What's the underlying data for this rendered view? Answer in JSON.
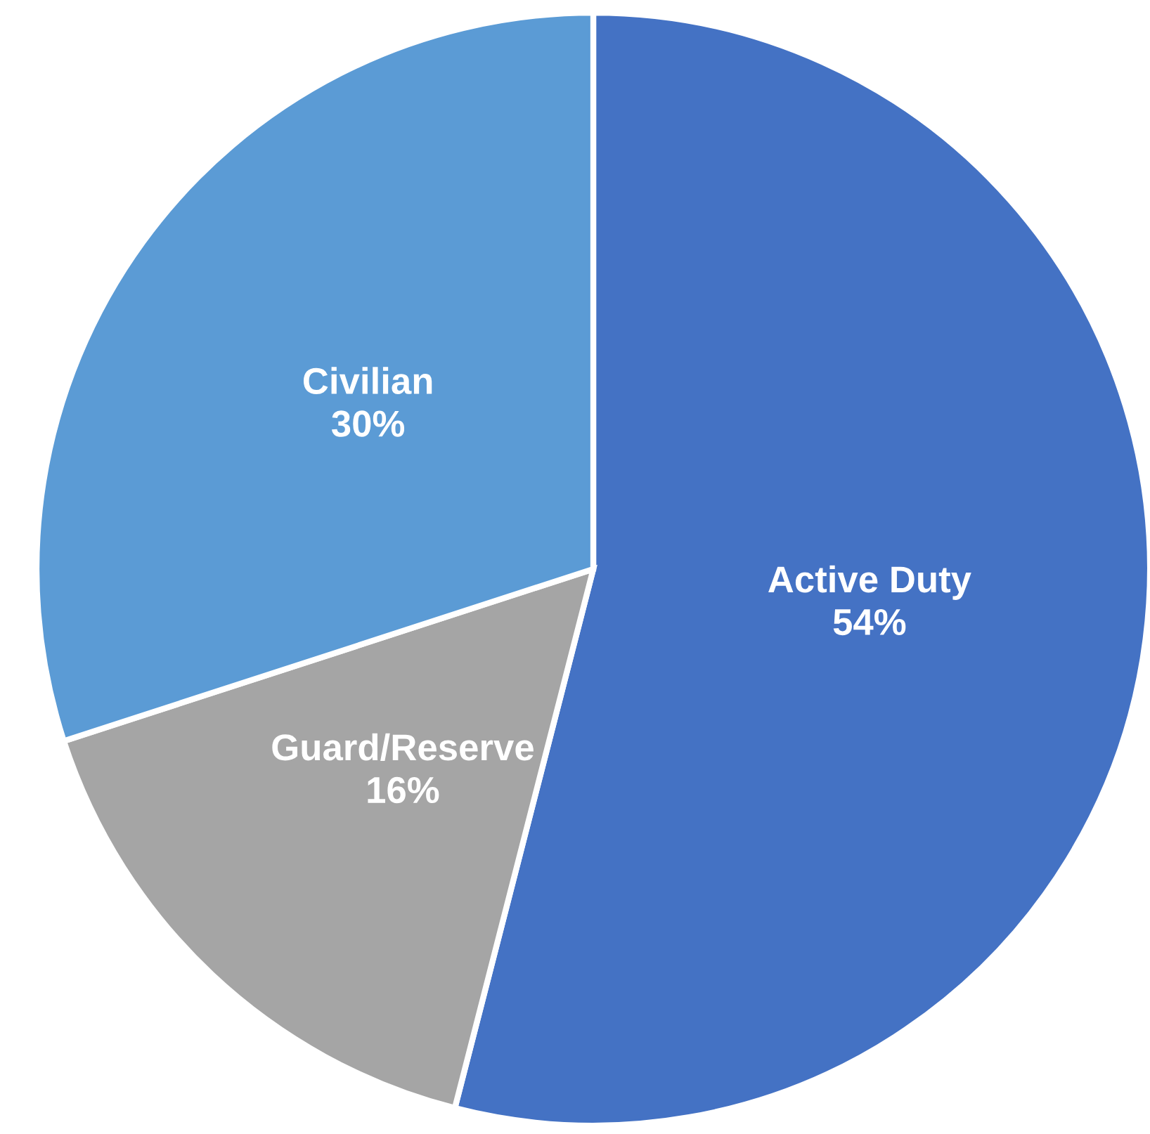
{
  "chart_data": {
    "type": "pie",
    "categories": [
      "Active Duty",
      "Guard/Reserve",
      "Civilian"
    ],
    "values": [
      54,
      16,
      30
    ],
    "colors": [
      "#4472c4",
      "#a5a5a5",
      "#5b9bd5"
    ],
    "value_labels": [
      "54%",
      "16%",
      "30%"
    ],
    "legend": false
  }
}
